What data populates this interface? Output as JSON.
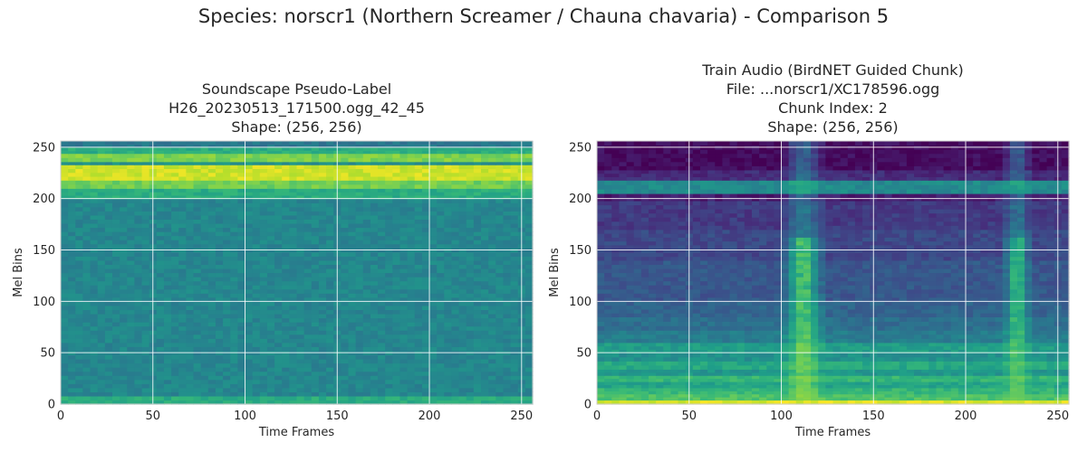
{
  "suptitle": "Species: norscr1 (Northern Screamer / Chauna chavaria) - Comparison 5",
  "chart_data": [
    {
      "type": "heatmap",
      "title_lines": [
        "Soundscape Pseudo-Label",
        "H26_20230513_171500.ogg_42_45",
        "Shape: (256, 256)"
      ],
      "xlabel": "Time Frames",
      "ylabel": "Mel Bins",
      "xlim": [
        0,
        256
      ],
      "ylim": [
        0,
        256
      ],
      "xticks": [
        0,
        50,
        100,
        150,
        200,
        250
      ],
      "yticks": [
        0,
        50,
        100,
        150,
        200,
        250
      ],
      "grid": true,
      "colormap": "viridis",
      "data_shape": [
        256,
        256
      ],
      "bands": [
        {
          "from": 0,
          "to": 8,
          "level": 0.62
        },
        {
          "from": 8,
          "to": 200,
          "level": 0.46
        },
        {
          "from": 200,
          "to": 210,
          "level": 0.62
        },
        {
          "from": 210,
          "to": 218,
          "level": 0.78
        },
        {
          "from": 218,
          "to": 233,
          "level": 0.93
        },
        {
          "from": 233,
          "to": 236,
          "level": 0.5
        },
        {
          "from": 236,
          "to": 244,
          "level": 0.8
        },
        {
          "from": 244,
          "to": 250,
          "level": 0.62
        },
        {
          "from": 250,
          "to": 256,
          "level": 0.4
        }
      ],
      "vertical_events": []
    },
    {
      "type": "heatmap",
      "title_lines": [
        "Train Audio (BirdNET Guided Chunk)",
        "File: ...norscr1/XC178596.ogg",
        "Chunk Index: 2",
        "Shape: (256, 256)"
      ],
      "xlabel": "Time Frames",
      "ylabel": "Mel Bins",
      "xlim": [
        0,
        256
      ],
      "ylim": [
        0,
        256
      ],
      "xticks": [
        0,
        50,
        100,
        150,
        200,
        250
      ],
      "yticks": [
        0,
        50,
        100,
        150,
        200,
        250
      ],
      "grid": true,
      "colormap": "viridis",
      "data_shape": [
        256,
        256
      ],
      "bands": [
        {
          "from": 0,
          "to": 4,
          "level": 0.95
        },
        {
          "from": 4,
          "to": 10,
          "level": 0.72
        },
        {
          "from": 10,
          "to": 16,
          "level": 0.66
        },
        {
          "from": 16,
          "to": 22,
          "level": 0.58
        },
        {
          "from": 22,
          "to": 28,
          "level": 0.66
        },
        {
          "from": 28,
          "to": 34,
          "level": 0.52
        },
        {
          "from": 34,
          "to": 42,
          "level": 0.6
        },
        {
          "from": 42,
          "to": 50,
          "level": 0.5
        },
        {
          "from": 50,
          "to": 60,
          "level": 0.55
        },
        {
          "from": 60,
          "to": 72,
          "level": 0.42
        },
        {
          "from": 72,
          "to": 85,
          "level": 0.36
        },
        {
          "from": 85,
          "to": 100,
          "level": 0.32
        },
        {
          "from": 100,
          "to": 140,
          "level": 0.27
        },
        {
          "from": 140,
          "to": 170,
          "level": 0.22
        },
        {
          "from": 170,
          "to": 198,
          "level": 0.17
        },
        {
          "from": 198,
          "to": 205,
          "level": 0.08
        },
        {
          "from": 205,
          "to": 218,
          "level": 0.48
        },
        {
          "from": 218,
          "to": 228,
          "level": 0.12
        },
        {
          "from": 228,
          "to": 256,
          "level": 0.03
        }
      ],
      "vertical_events": [
        {
          "x0": 100,
          "x1": 124,
          "y0": 0,
          "y1": 256,
          "level": 0.85
        },
        {
          "x0": 220,
          "x1": 236,
          "y0": 0,
          "y1": 256,
          "level": 0.8
        }
      ]
    }
  ]
}
